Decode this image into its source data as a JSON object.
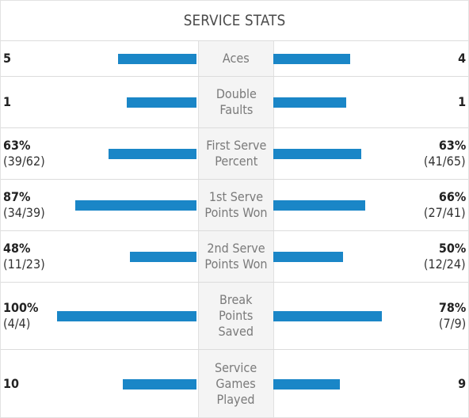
{
  "header": {
    "title": "SERVICE STATS"
  },
  "colors": {
    "bar": "#1a86c7",
    "label_bg": "#f4f4f4"
  },
  "rows": [
    {
      "label": "Aces",
      "left_value": "5",
      "left_detail": "",
      "right_value": "4",
      "right_detail": ""
    },
    {
      "label": "Double\nFaults",
      "left_value": "1",
      "left_detail": "",
      "right_value": "1",
      "right_detail": ""
    },
    {
      "label": "First Serve\nPercent",
      "left_value": "63%",
      "left_detail": "(39/62)",
      "right_value": "63%",
      "right_detail": "(41/65)"
    },
    {
      "label": "1st Serve\nPoints Won",
      "left_value": "87%",
      "left_detail": "(34/39)",
      "right_value": "66%",
      "right_detail": "(27/41)"
    },
    {
      "label": "2nd Serve\nPoints Won",
      "left_value": "48%",
      "left_detail": "(11/23)",
      "right_value": "50%",
      "right_detail": "(12/24)"
    },
    {
      "label": "Break\nPoints\nSaved",
      "left_value": "100%",
      "left_detail": "(4/4)",
      "right_value": "78%",
      "right_detail": "(7/9)"
    },
    {
      "label": "Service\nGames\nPlayed",
      "left_value": "10",
      "left_detail": "",
      "right_value": "9",
      "right_detail": ""
    }
  ],
  "bars": [
    {
      "left": 0.56,
      "right": 0.55
    },
    {
      "left": 0.5,
      "right": 0.52
    },
    {
      "left": 0.63,
      "right": 0.63
    },
    {
      "left": 0.87,
      "right": 0.66
    },
    {
      "left": 0.48,
      "right": 0.5
    },
    {
      "left": 1.0,
      "right": 0.78
    },
    {
      "left": 0.53,
      "right": 0.48
    }
  ]
}
